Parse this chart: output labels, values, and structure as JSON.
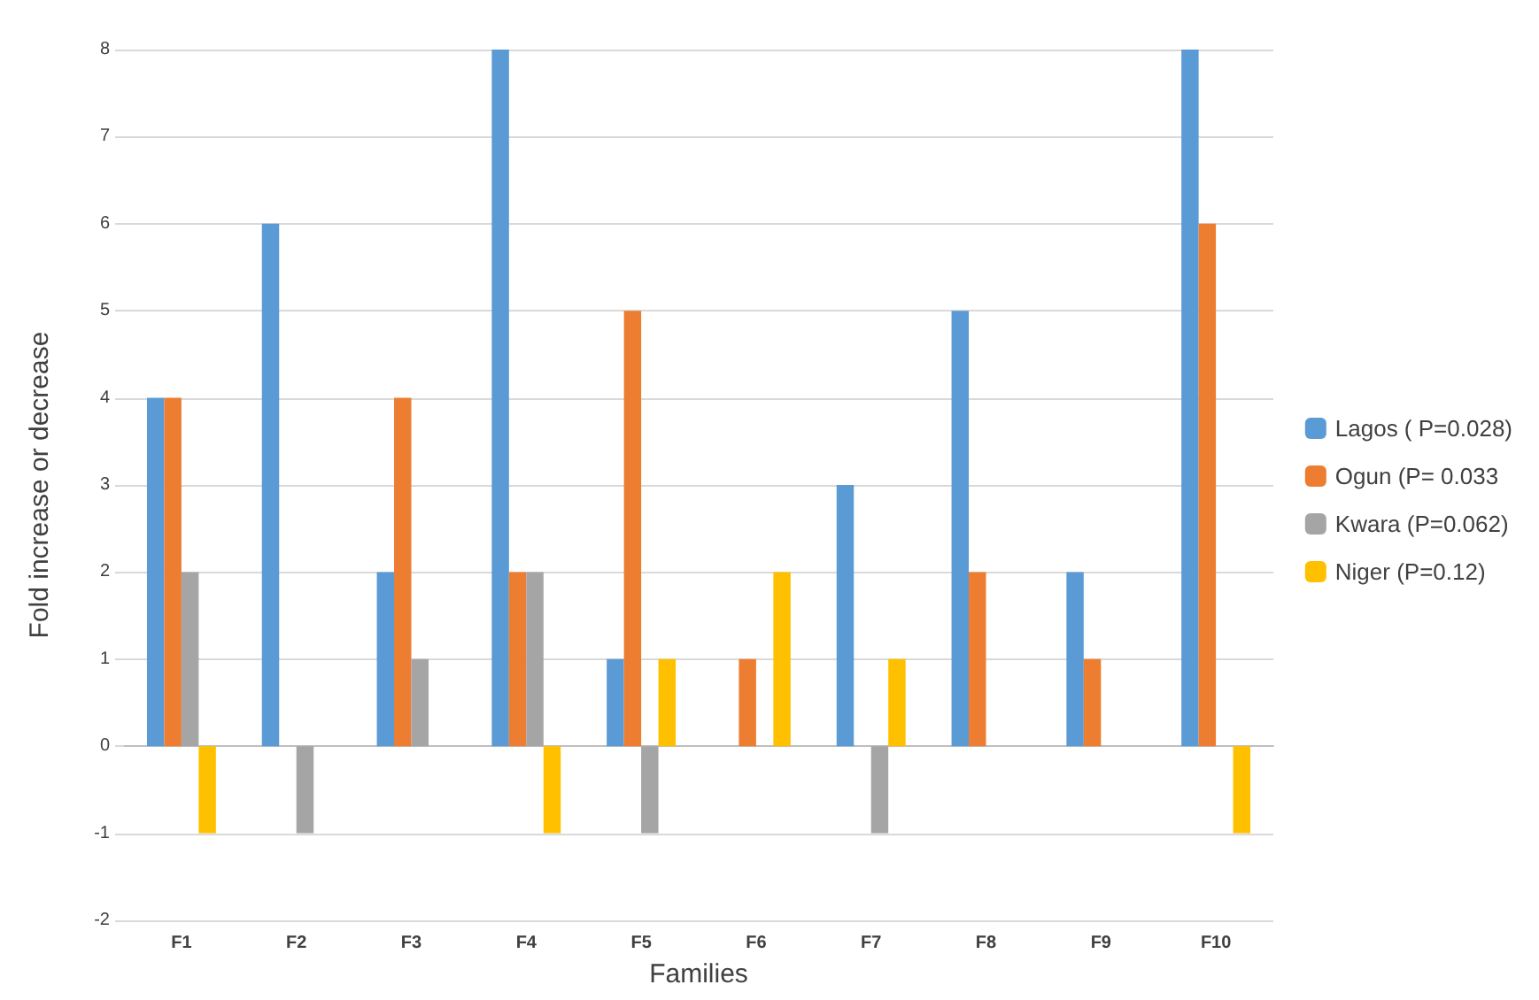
{
  "chart_data": {
    "type": "bar",
    "xlabel": "Families",
    "ylabel": "Fold increase or decrease",
    "categories": [
      "F1",
      "F2",
      "F3",
      "F4",
      "F5",
      "F6",
      "F7",
      "F8",
      "F9",
      "F10"
    ],
    "series": [
      {
        "name": "Lagos ( P=0.028)",
        "color": "#5b9bd5",
        "values": [
          4,
          6,
          2,
          8,
          1,
          0,
          3,
          5,
          2,
          8
        ]
      },
      {
        "name": "Ogun (P= 0.033",
        "color": "#ed7d31",
        "values": [
          4,
          0,
          4,
          2,
          5,
          1,
          0,
          2,
          1,
          6
        ]
      },
      {
        "name": "Kwara (P=0.062)",
        "color": "#a5a5a5",
        "values": [
          2,
          -1,
          1,
          2,
          -1,
          0,
          -1,
          0,
          0,
          0
        ]
      },
      {
        "name": "Niger (P=0.12)",
        "color": "#ffc000",
        "values": [
          -1,
          0,
          0,
          -1,
          1,
          2,
          1,
          0,
          0,
          -1
        ]
      }
    ],
    "ylim": [
      -2,
      8
    ],
    "yticks": [
      -2,
      -1,
      0,
      1,
      2,
      3,
      4,
      5,
      6,
      7,
      8
    ],
    "grid": "y",
    "legend": "right"
  }
}
